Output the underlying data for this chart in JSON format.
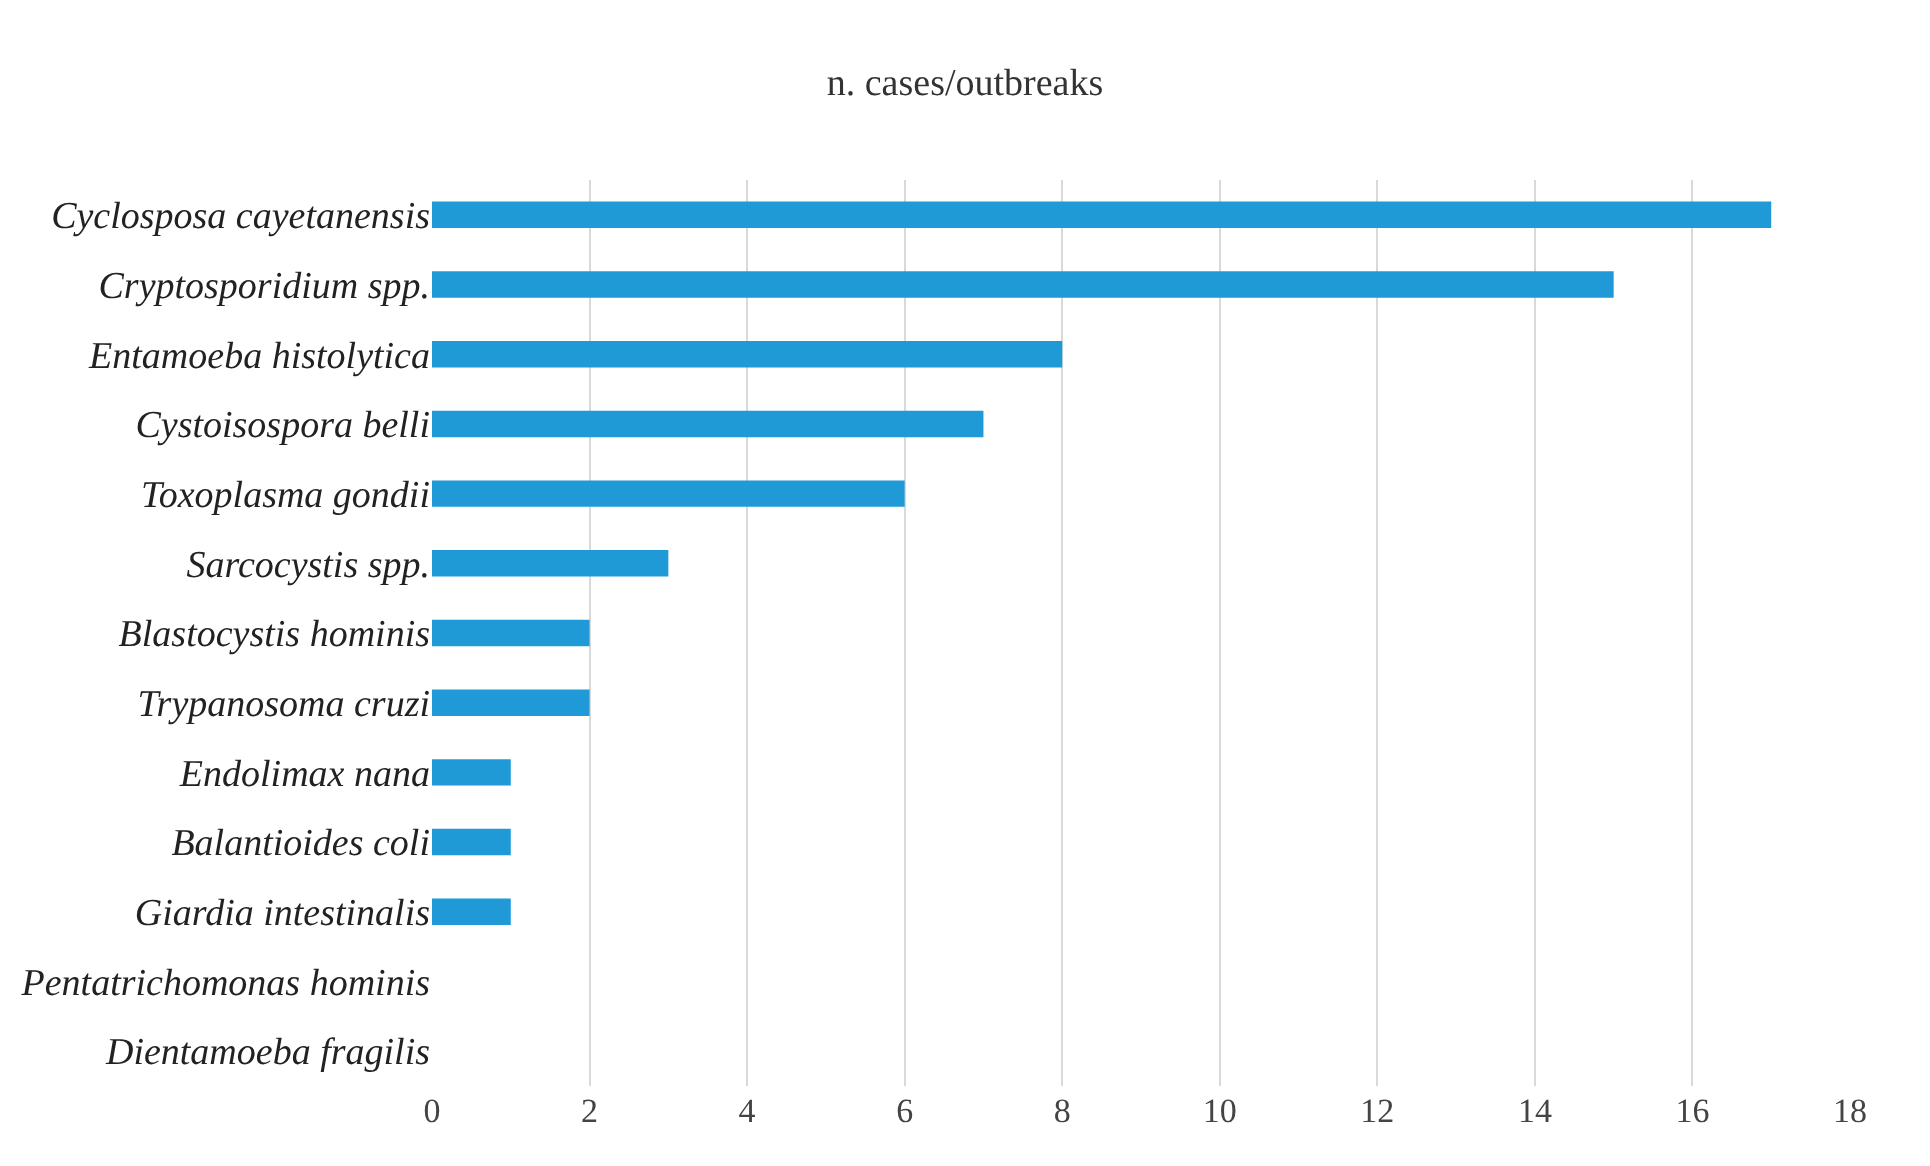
{
  "chart_data": {
    "type": "bar",
    "orientation": "horizontal",
    "title": "n. cases/outbreaks",
    "categories": [
      "Cyclosposa cayetanensis",
      "Cryptosporidium spp.",
      "Entamoeba histolytica",
      "Cystoisospora belli",
      "Toxoplasma gondii",
      "Sarcocystis spp.",
      "Blastocystis hominis",
      "Trypanosoma cruzi",
      "Endolimax nana",
      "Balantioides coli",
      "Giardia intestinalis",
      "Pentatrichomonas hominis",
      "Dientamoeba fragilis"
    ],
    "values": [
      17,
      15,
      8,
      7,
      6,
      3,
      2,
      2,
      1,
      1,
      1,
      0,
      0
    ],
    "color": "#1f9ad6",
    "xlim": [
      0,
      18
    ],
    "xticks": [
      0,
      2,
      4,
      6,
      8,
      10,
      12,
      14,
      16,
      18
    ],
    "grid": "x"
  }
}
